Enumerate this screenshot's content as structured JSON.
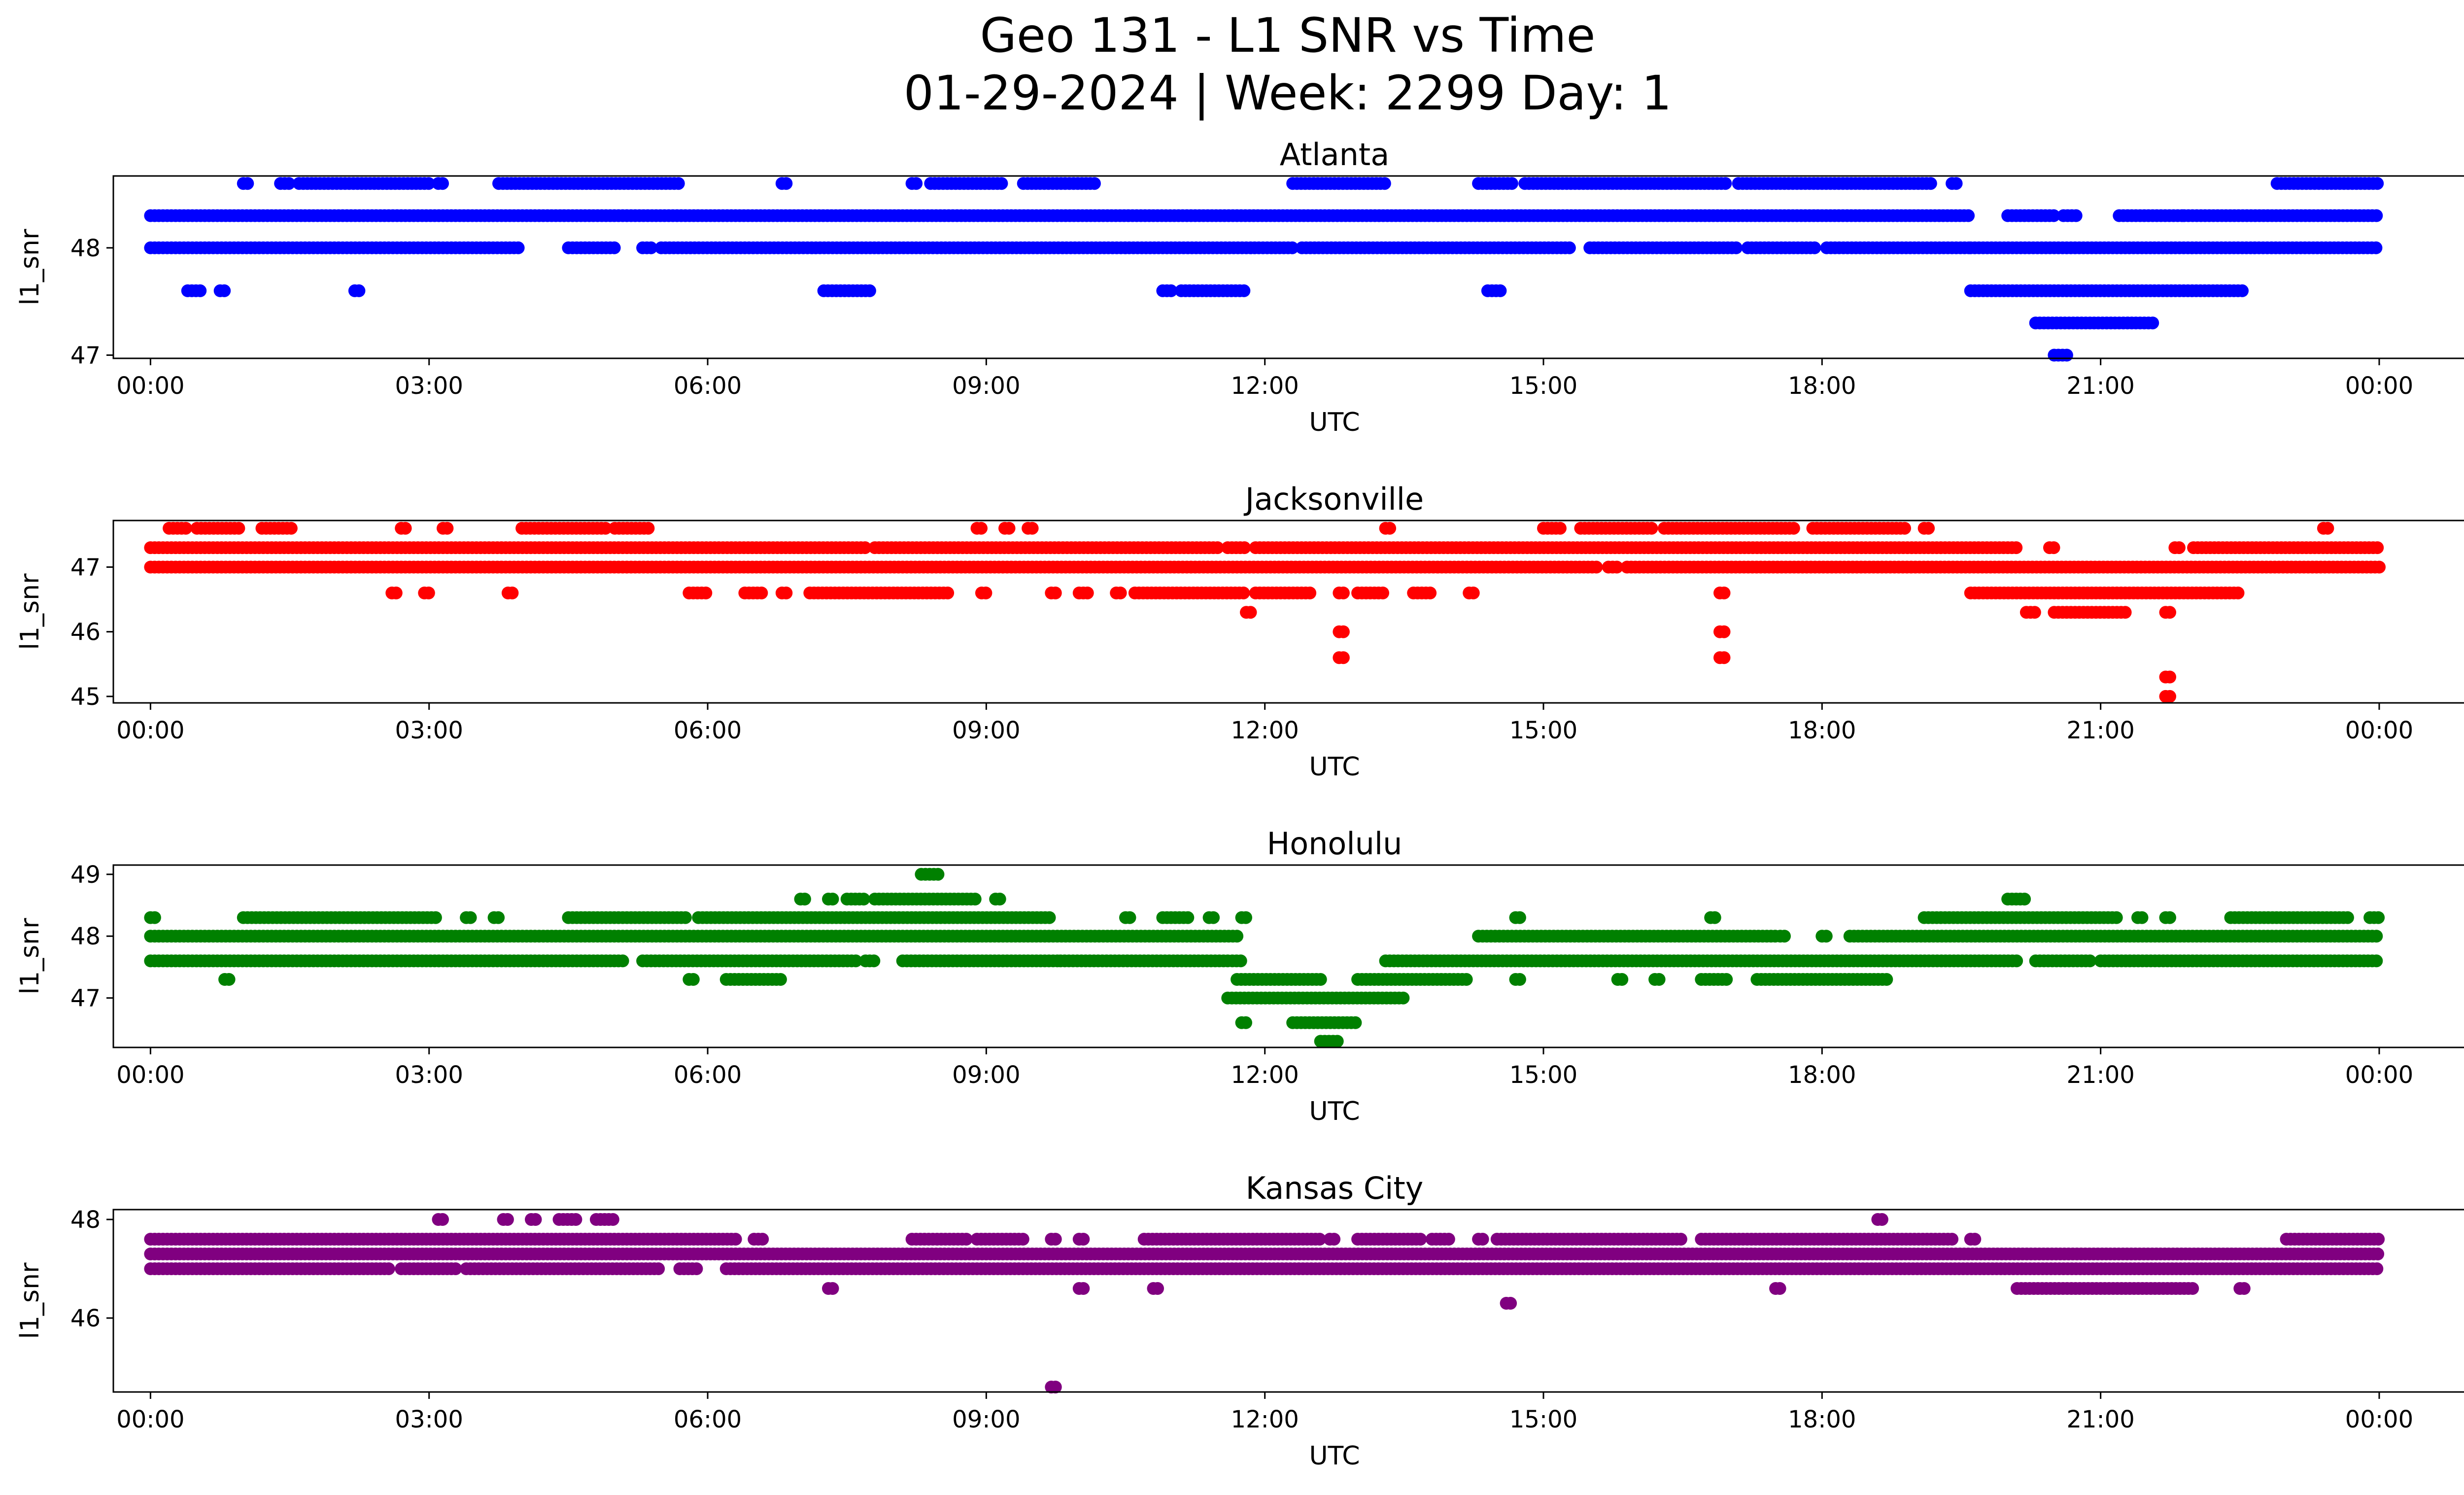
{
  "figure": {
    "title_line1": "Geo 131 - L1 SNR vs Time",
    "title_line2": "01-29-2024 | Week: 2299 Day: 1"
  },
  "chart_data": [
    {
      "type": "scatter",
      "title": "Atlanta",
      "xlabel": "UTC",
      "ylabel": "l1_snr",
      "color": "#0000ff",
      "x_ticks": [
        "00:00",
        "03:00",
        "06:00",
        "09:00",
        "12:00",
        "15:00",
        "18:00",
        "21:00",
        "00:00"
      ],
      "y_ticks": [
        47,
        48
      ],
      "xlim": [
        -0.4,
        25.9
      ],
      "ylim": [
        46.97,
        48.67
      ],
      "levels": [
        {
          "y": 48.3,
          "segments": [
            [
              0.0,
              19.6
            ],
            [
              20.0,
              20.5
            ],
            [
              20.6,
              20.75
            ],
            [
              21.2,
              21.9
            ],
            [
              21.9,
              24.0
            ]
          ]
        },
        {
          "y": 48.0,
          "segments": [
            [
              0.0,
              4.0
            ],
            [
              4.5,
              5.0
            ],
            [
              5.3,
              5.4
            ],
            [
              5.5,
              12.3
            ],
            [
              12.4,
              15.3
            ],
            [
              15.5,
              17.1
            ],
            [
              17.2,
              17.95
            ],
            [
              18.05,
              19.6
            ],
            [
              19.6,
              24.0
            ]
          ]
        },
        {
          "y": 48.6,
          "segments": [
            [
              1.0,
              1.05
            ],
            [
              1.4,
              1.5
            ],
            [
              1.6,
              3.0
            ],
            [
              3.1,
              3.15
            ],
            [
              3.75,
              5.7
            ],
            [
              6.8,
              6.85
            ],
            [
              8.2,
              8.25
            ],
            [
              8.4,
              9.2
            ],
            [
              9.4,
              10.2
            ],
            [
              12.3,
              13.3
            ],
            [
              14.3,
              14.7
            ],
            [
              14.8,
              17.0
            ],
            [
              17.1,
              19.2
            ],
            [
              19.4,
              19.45
            ],
            [
              22.9,
              24.0
            ]
          ]
        },
        {
          "y": 47.6,
          "segments": [
            [
              0.4,
              0.55
            ],
            [
              0.75,
              0.8
            ],
            [
              2.2,
              2.25
            ],
            [
              7.25,
              7.75
            ],
            [
              10.9,
              11.0
            ],
            [
              11.1,
              11.8
            ],
            [
              14.4,
              14.55
            ],
            [
              19.6,
              22.55
            ]
          ]
        },
        {
          "y": 47.3,
          "segments": [
            [
              20.3,
              21.6
            ]
          ]
        },
        {
          "y": 47.0,
          "segments": [
            [
              20.5,
              20.65
            ]
          ]
        }
      ]
    },
    {
      "type": "scatter",
      "title": "Jacksonville",
      "xlabel": "UTC",
      "ylabel": "l1_snr",
      "color": "#ff0000",
      "x_ticks": [
        "00:00",
        "03:00",
        "06:00",
        "09:00",
        "12:00",
        "15:00",
        "18:00",
        "21:00",
        "00:00"
      ],
      "y_ticks": [
        45,
        46,
        47
      ],
      "xlim": [
        -0.4,
        25.9
      ],
      "ylim": [
        44.9,
        47.72
      ],
      "levels": [
        {
          "y": 47.3,
          "segments": [
            [
              0.0,
              7.7
            ],
            [
              7.8,
              11.5
            ],
            [
              11.6,
              11.8
            ],
            [
              11.9,
              20.1
            ],
            [
              20.45,
              20.5
            ],
            [
              21.8,
              21.85
            ],
            [
              22.0,
              24.0
            ]
          ]
        },
        {
          "y": 47.0,
          "segments": [
            [
              0.0,
              15.6
            ],
            [
              15.7,
              15.8
            ],
            [
              15.9,
              24.0
            ]
          ]
        },
        {
          "y": 47.6,
          "segments": [
            [
              0.2,
              0.4
            ],
            [
              0.5,
              0.95
            ],
            [
              1.2,
              1.55
            ],
            [
              2.7,
              2.75
            ],
            [
              3.15,
              3.2
            ],
            [
              4.0,
              4.9
            ],
            [
              5.0,
              5.4
            ],
            [
              8.9,
              8.95
            ],
            [
              9.2,
              9.25
            ],
            [
              9.45,
              9.5
            ],
            [
              13.3,
              13.35
            ],
            [
              15.0,
              15.2
            ],
            [
              15.4,
              16.2
            ],
            [
              16.3,
              17.7
            ],
            [
              17.9,
              18.9
            ],
            [
              19.1,
              19.15
            ],
            [
              23.4,
              23.45
            ]
          ]
        },
        {
          "y": 46.6,
          "segments": [
            [
              2.6,
              2.65
            ],
            [
              2.95,
              3.0
            ],
            [
              3.85,
              3.9
            ],
            [
              5.8,
              6.0
            ],
            [
              6.4,
              6.6
            ],
            [
              6.8,
              6.85
            ],
            [
              7.1,
              8.6
            ],
            [
              8.95,
              9.0
            ],
            [
              9.7,
              9.75
            ],
            [
              10.0,
              10.1
            ],
            [
              10.4,
              10.45
            ],
            [
              10.6,
              11.8
            ],
            [
              11.9,
              12.5
            ],
            [
              12.8,
              12.85
            ],
            [
              13.0,
              13.3
            ],
            [
              13.6,
              13.8
            ],
            [
              14.2,
              14.25
            ],
            [
              16.9,
              16.95
            ],
            [
              19.6,
              22.5
            ]
          ]
        },
        {
          "y": 46.3,
          "segments": [
            [
              11.8,
              11.85
            ],
            [
              20.2,
              20.3
            ],
            [
              20.5,
              21.3
            ],
            [
              21.7,
              21.75
            ]
          ]
        },
        {
          "y": 46.0,
          "segments": [
            [
              12.8,
              12.85
            ],
            [
              16.9,
              16.95
            ]
          ]
        },
        {
          "y": 45.6,
          "segments": [
            [
              12.8,
              12.85
            ],
            [
              16.9,
              16.95
            ]
          ]
        },
        {
          "y": 45.3,
          "segments": [
            [
              21.7,
              21.75
            ]
          ]
        },
        {
          "y": 45.0,
          "segments": [
            [
              21.7,
              21.75
            ]
          ]
        }
      ]
    },
    {
      "type": "scatter",
      "title": "Honolulu",
      "xlabel": "UTC",
      "ylabel": "l1_snr",
      "color": "#008000",
      "x_ticks": [
        "00:00",
        "03:00",
        "06:00",
        "09:00",
        "12:00",
        "15:00",
        "18:00",
        "21:00",
        "00:00"
      ],
      "y_ticks": [
        47,
        48,
        49
      ],
      "xlim": [
        -0.4,
        25.9
      ],
      "ylim": [
        46.2,
        49.15
      ],
      "levels": [
        {
          "y": 48.0,
          "segments": [
            [
              0.0,
              11.7
            ],
            [
              14.3,
              17.5
            ],
            [
              17.55,
              17.6
            ],
            [
              18.0,
              18.05
            ],
            [
              18.3,
              24.0
            ]
          ]
        },
        {
          "y": 47.6,
          "segments": [
            [
              0.0,
              5.1
            ],
            [
              5.3,
              7.6
            ],
            [
              7.7,
              7.8
            ],
            [
              8.1,
              9.8
            ],
            [
              9.8,
              11.6
            ],
            [
              11.65,
              11.75
            ],
            [
              13.3,
              20.1
            ],
            [
              20.3,
              20.9
            ],
            [
              21.0,
              24.0
            ]
          ]
        },
        {
          "y": 48.3,
          "segments": [
            [
              0.0,
              0.05
            ],
            [
              1.0,
              3.1
            ],
            [
              3.4,
              3.45
            ],
            [
              3.7,
              3.75
            ],
            [
              4.5,
              5.8
            ],
            [
              5.9,
              9.7
            ],
            [
              10.5,
              10.55
            ],
            [
              10.9,
              11.2
            ],
            [
              11.4,
              11.45
            ],
            [
              11.75,
              11.8
            ],
            [
              14.7,
              14.75
            ],
            [
              16.8,
              16.85
            ],
            [
              19.1,
              21.2
            ],
            [
              21.4,
              21.45
            ],
            [
              21.7,
              21.75
            ],
            [
              22.4,
              23.7
            ],
            [
              23.9,
              24.0
            ]
          ]
        },
        {
          "y": 48.6,
          "segments": [
            [
              7.0,
              7.05
            ],
            [
              7.3,
              7.35
            ],
            [
              7.5,
              7.7
            ],
            [
              7.8,
              8.9
            ],
            [
              9.1,
              9.15
            ],
            [
              20.0,
              20.2
            ]
          ]
        },
        {
          "y": 49.0,
          "segments": [
            [
              8.3,
              8.5
            ]
          ]
        },
        {
          "y": 47.3,
          "segments": [
            [
              0.8,
              0.85
            ],
            [
              5.8,
              5.85
            ],
            [
              6.2,
              6.8
            ],
            [
              11.7,
              12.6
            ],
            [
              13.0,
              14.2
            ],
            [
              14.7,
              14.75
            ],
            [
              15.8,
              15.85
            ],
            [
              16.2,
              16.25
            ],
            [
              16.7,
              17.0
            ],
            [
              17.3,
              18.7
            ]
          ]
        },
        {
          "y": 47.0,
          "segments": [
            [
              11.6,
              13.5
            ]
          ]
        },
        {
          "y": 46.6,
          "segments": [
            [
              11.75,
              11.8
            ],
            [
              12.3,
              13.0
            ]
          ]
        },
        {
          "y": 46.3,
          "segments": [
            [
              12.6,
              12.8
            ]
          ]
        }
      ]
    },
    {
      "type": "scatter",
      "title": "Kansas City",
      "xlabel": "UTC",
      "ylabel": "l1_snr",
      "color": "#800080",
      "x_ticks": [
        "00:00",
        "03:00",
        "06:00",
        "09:00",
        "12:00",
        "15:00",
        "18:00",
        "21:00",
        "00:00"
      ],
      "y_ticks": [
        46,
        48
      ],
      "xlim": [
        -0.4,
        25.9
      ],
      "ylim": [
        44.5,
        48.2
      ],
      "levels": [
        {
          "y": 47.6,
          "segments": [
            [
              0.0,
              6.3
            ],
            [
              6.5,
              6.6
            ],
            [
              8.2,
              8.8
            ],
            [
              8.9,
              9.4
            ],
            [
              9.7,
              9.75
            ],
            [
              10.0,
              10.05
            ],
            [
              10.7,
              12.6
            ],
            [
              12.7,
              12.75
            ],
            [
              13.0,
              13.7
            ],
            [
              13.8,
              14.0
            ],
            [
              14.3,
              14.35
            ],
            [
              14.5,
              16.5
            ],
            [
              16.7,
              19.4
            ],
            [
              19.6,
              19.65
            ],
            [
              23.0,
              24.0
            ]
          ]
        },
        {
          "y": 47.3,
          "segments": [
            [
              0.0,
              24.0
            ]
          ]
        },
        {
          "y": 47.0,
          "segments": [
            [
              0.0,
              2.6
            ],
            [
              2.7,
              3.3
            ],
            [
              3.4,
              5.5
            ],
            [
              5.7,
              5.9
            ],
            [
              6.2,
              24.0
            ]
          ]
        },
        {
          "y": 48.0,
          "segments": [
            [
              3.1,
              3.15
            ],
            [
              3.8,
              3.85
            ],
            [
              4.1,
              4.15
            ],
            [
              4.4,
              4.6
            ],
            [
              4.8,
              5.0
            ],
            [
              18.6,
              18.65
            ]
          ]
        },
        {
          "y": 46.6,
          "segments": [
            [
              7.3,
              7.35
            ],
            [
              10.0,
              10.05
            ],
            [
              10.8,
              10.85
            ],
            [
              17.5,
              17.55
            ],
            [
              20.1,
              22.0
            ],
            [
              22.5,
              22.55
            ]
          ]
        },
        {
          "y": 46.3,
          "segments": [
            [
              14.6,
              14.65
            ]
          ]
        },
        {
          "y": 44.6,
          "segments": [
            [
              9.7,
              9.75
            ]
          ]
        }
      ]
    }
  ]
}
